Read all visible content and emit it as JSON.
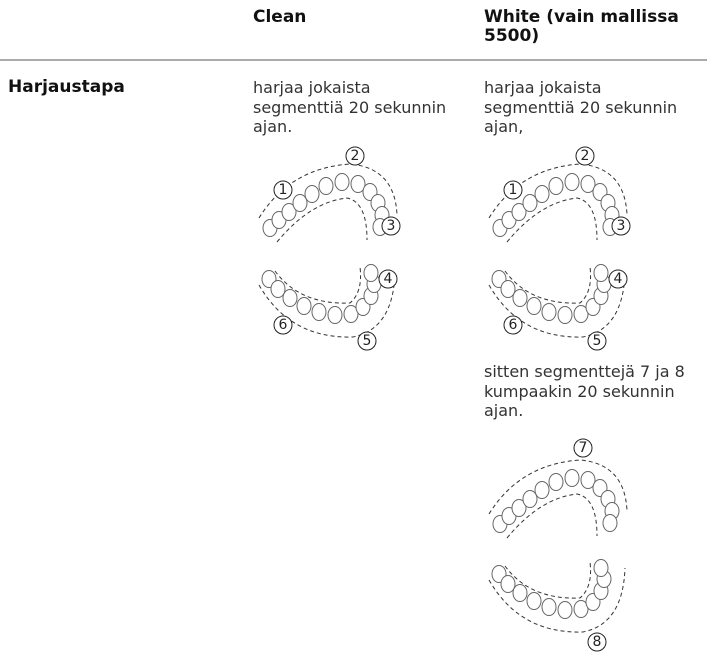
{
  "header": {
    "column_1": "Clean",
    "column_2": [
      "White (vain mallissa",
      "5500)"
    ]
  },
  "row": {
    "label": "Harjaustapa",
    "clean": {
      "text": [
        "harjaa jokaista",
        "segmenttiä 20 sekunnin",
        "ajan."
      ],
      "diagrams": [
        [
          "1",
          "2",
          "3"
        ],
        [
          "4",
          "5",
          "6"
        ]
      ]
    },
    "white": {
      "text": [
        "harjaa jokaista",
        "segmenttiä 20 sekunnin",
        "ajan,"
      ],
      "diagrams": [
        [
          "1",
          "2",
          "3"
        ],
        [
          "4",
          "5",
          "6"
        ]
      ],
      "text_2": [
        "sitten segmenttejä 7 ja 8",
        "kumpaakin 20 sekunnin",
        "ajan."
      ],
      "diagrams_2": [
        [
          "7"
        ],
        [
          "8"
        ]
      ]
    }
  }
}
